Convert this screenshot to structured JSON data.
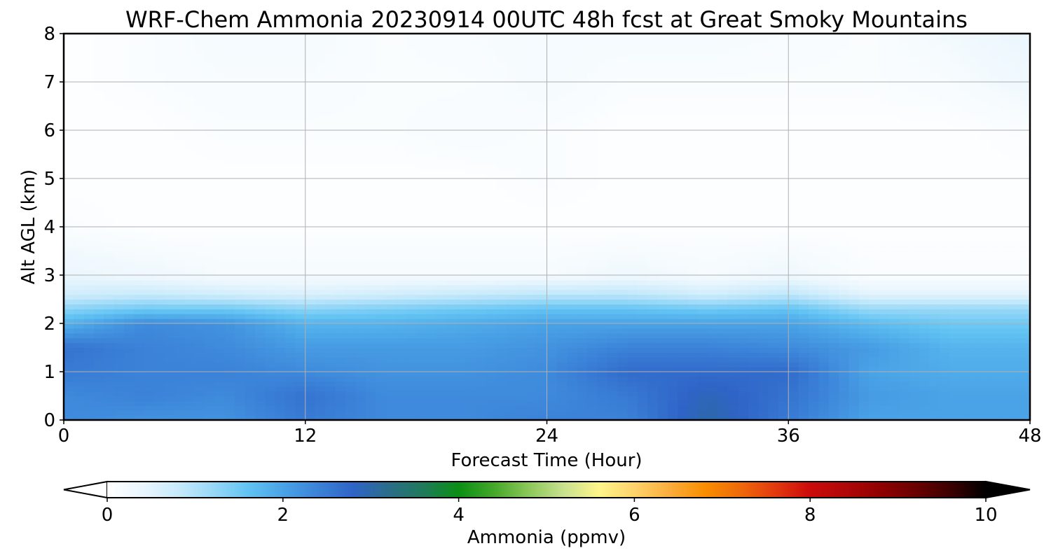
{
  "chart_data": {
    "type": "heatmap",
    "title": "WRF-Chem Ammonia  20230914 00UTC 48h fcst at Great Smoky Mountains",
    "xlabel": "Forecast Time (Hour)",
    "ylabel": "Alt AGL (km)",
    "xlim": [
      0,
      48
    ],
    "ylim": [
      0,
      8
    ],
    "xticks": [
      "0",
      "12",
      "24",
      "36",
      "48"
    ],
    "yticks": [
      "0",
      "1",
      "2",
      "3",
      "4",
      "5",
      "6",
      "7",
      "8"
    ],
    "grid": true,
    "x_hours": [
      0,
      4,
      8,
      12,
      16,
      20,
      24,
      28,
      32,
      36,
      40,
      44,
      48
    ],
    "z_km": [
      0,
      0.5,
      1,
      1.5,
      2,
      2.3,
      2.6,
      3,
      4,
      5,
      6,
      7,
      8
    ],
    "values_ppmv": [
      [
        2.3,
        2.2,
        2.2,
        2.5,
        2.3,
        2.3,
        2.4,
        2.4,
        3.0,
        2.5,
        2.0,
        2.0,
        2.0
      ],
      [
        2.3,
        2.4,
        2.3,
        2.6,
        2.3,
        2.3,
        2.3,
        2.5,
        2.9,
        2.6,
        2.1,
        2.0,
        2.0
      ],
      [
        2.5,
        2.4,
        2.4,
        2.3,
        2.2,
        2.2,
        2.3,
        2.7,
        2.7,
        2.7,
        2.0,
        1.9,
        1.9
      ],
      [
        2.6,
        2.4,
        2.3,
        2.1,
        2.1,
        2.1,
        2.2,
        2.4,
        2.4,
        2.3,
        2.1,
        1.8,
        1.8
      ],
      [
        1.8,
        2.3,
        2.2,
        1.8,
        1.8,
        1.9,
        2.0,
        2.0,
        2.0,
        2.0,
        1.7,
        1.5,
        1.5
      ],
      [
        1.3,
        1.5,
        1.5,
        1.3,
        1.4,
        1.5,
        1.6,
        1.6,
        1.5,
        1.6,
        1.2,
        1.2,
        1.2
      ],
      [
        0.7,
        0.8,
        0.7,
        0.6,
        0.7,
        0.8,
        0.9,
        0.9,
        0.7,
        0.9,
        0.5,
        0.5,
        0.5
      ],
      [
        0.4,
        0.3,
        0.2,
        0.2,
        0.2,
        0.2,
        0.2,
        0.3,
        0.2,
        0.3,
        0.1,
        0.1,
        0.1
      ],
      [
        0.1,
        0.05,
        0.05,
        0.05,
        0.05,
        0.05,
        0.05,
        0.05,
        0.05,
        0.05,
        0.05,
        0.05,
        0.05
      ],
      [
        0.05,
        0.05,
        0.05,
        0.05,
        0.05,
        0.05,
        0.1,
        0.05,
        0.05,
        0.05,
        0.05,
        0.05,
        0.05
      ],
      [
        0.05,
        0.05,
        0.1,
        0.1,
        0.1,
        0.15,
        0.1,
        0.05,
        0.05,
        0.05,
        0.05,
        0.05,
        0.1
      ],
      [
        0.05,
        0.1,
        0.15,
        0.15,
        0.1,
        0.1,
        0.2,
        0.1,
        0.1,
        0.1,
        0.1,
        0.15,
        0.3
      ],
      [
        0.05,
        0.1,
        0.2,
        0.2,
        0.1,
        0.15,
        0.2,
        0.2,
        0.2,
        0.15,
        0.1,
        0.25,
        0.4
      ]
    ],
    "colorbar": {
      "label": "Ammonia  (ppmv)",
      "ticks": [
        "0",
        "2",
        "4",
        "6",
        "8",
        "10"
      ],
      "range": [
        0,
        10
      ],
      "extend": "both",
      "colors": [
        "#ffffff",
        "#eaf6fd",
        "#c8eafb",
        "#98d8f7",
        "#62c3f3",
        "#4aa3e6",
        "#3b82d8",
        "#2f64c7",
        "#2a6d8a",
        "#1f7a5a",
        "#0a8f14",
        "#45a82a",
        "#8cc85a",
        "#c9e190",
        "#fff58a",
        "#fdd36b",
        "#fbad3c",
        "#f98e00",
        "#ef6a0a",
        "#e23a0e",
        "#cc0a0a",
        "#b00808",
        "#900000",
        "#6a0000",
        "#3c0000",
        "#000000"
      ]
    }
  }
}
